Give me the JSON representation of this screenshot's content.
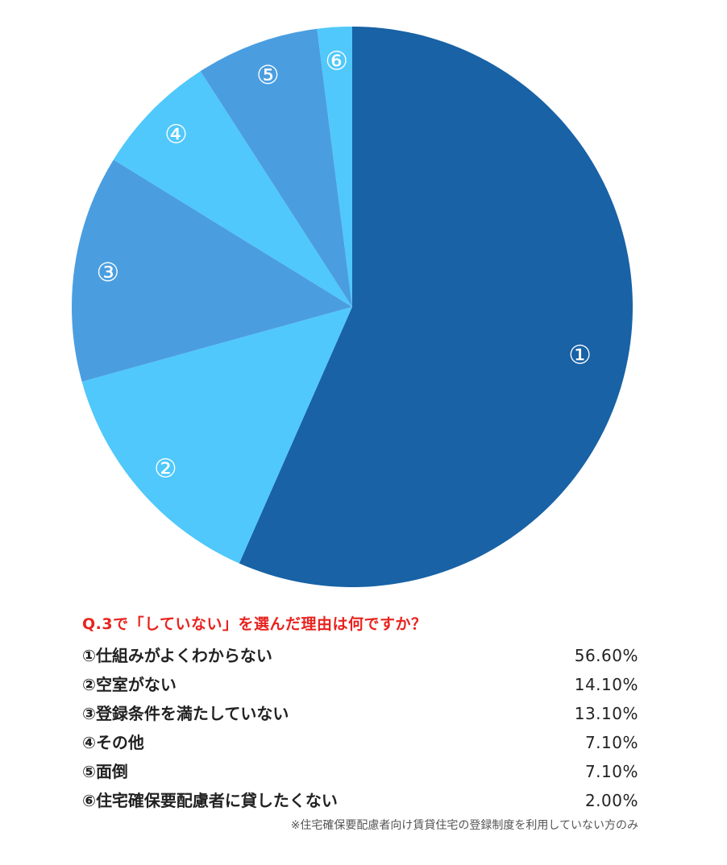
{
  "chart_data": {
    "type": "pie",
    "title": "Q.3で「していない」を選んだ理由は何ですか？",
    "slices": [
      {
        "marker": "①",
        "label": "仕組みがよくわからない",
        "value": 56.6,
        "value_label": "56.60%",
        "color": "#1862a5"
      },
      {
        "marker": "②",
        "label": "空室がない",
        "value": 14.1,
        "value_label": "14.10%",
        "color": "#50c8fb"
      },
      {
        "marker": "③",
        "label": "登録条件を満たしていない",
        "value": 13.1,
        "value_label": "13.10%",
        "color": "#4a9ee0"
      },
      {
        "marker": "④",
        "label": "その他",
        "value": 7.1,
        "value_label": "7.10%",
        "color": "#50c8fb"
      },
      {
        "marker": "⑤",
        "label": "面倒",
        "value": 7.1,
        "value_label": "7.10%",
        "color": "#4a9ee0"
      },
      {
        "marker": "⑥",
        "label": "住宅確保要配慮者に貸したくない",
        "value": 2.0,
        "value_label": "2.00%",
        "color": "#50c8fb"
      }
    ],
    "note": "※住宅確保要配慮者向け賃貸住宅の登録制度を利用していない方のみ",
    "legend_placement": "bottom"
  }
}
